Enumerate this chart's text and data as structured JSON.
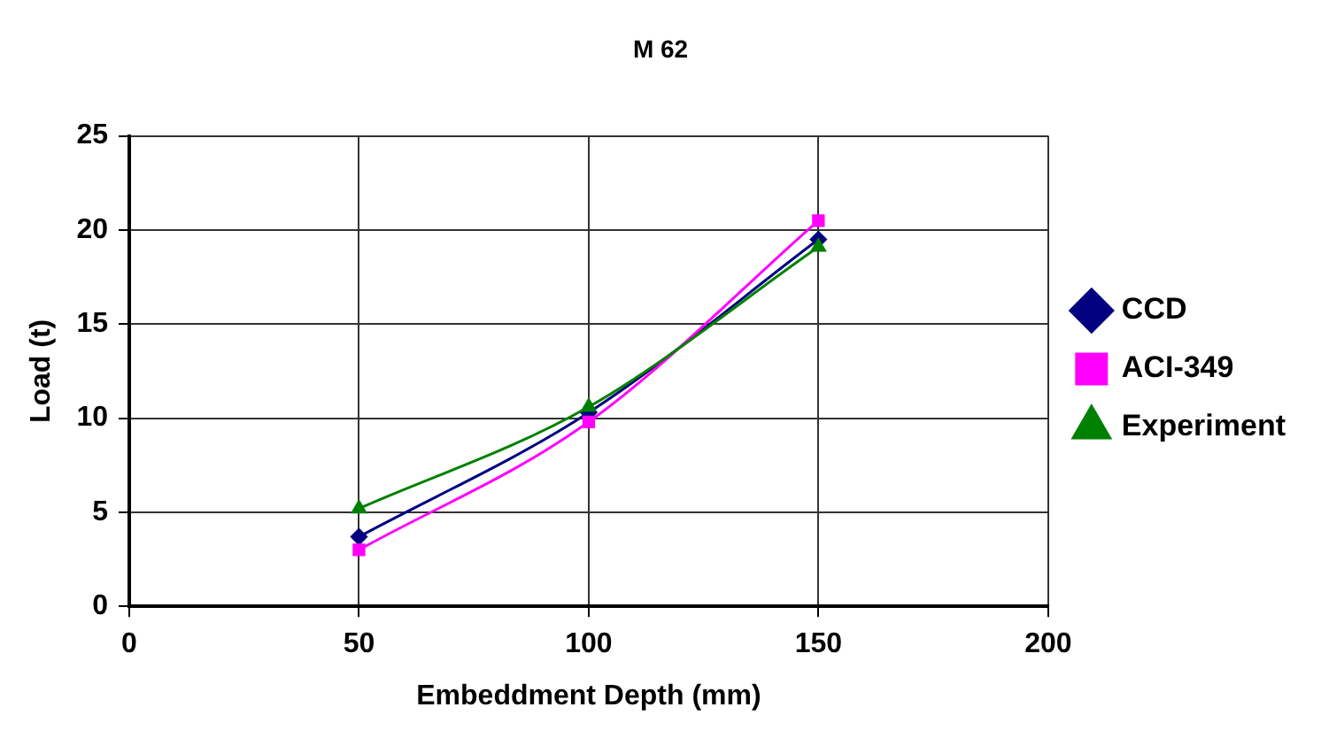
{
  "chart_data": {
    "type": "line",
    "title": "M 62",
    "xlabel": "Embeddment Depth (mm)",
    "ylabel": "Load (t)",
    "x": [
      50,
      100,
      150
    ],
    "series": [
      {
        "name": "CCD",
        "color": "#000080",
        "marker": "diamond",
        "values": [
          3.7,
          10.3,
          19.5
        ]
      },
      {
        "name": "ACI-349",
        "color": "#ff00ff",
        "marker": "square",
        "values": [
          3.0,
          9.8,
          20.5
        ]
      },
      {
        "name": "Experiment",
        "color": "#008000",
        "marker": "triangle",
        "values": [
          5.2,
          10.6,
          19.1
        ]
      }
    ],
    "xlim": [
      0,
      200
    ],
    "xticks": [
      0,
      50,
      100,
      150,
      200
    ],
    "ylim": [
      0,
      25
    ],
    "yticks": [
      0,
      5,
      10,
      15,
      20,
      25
    ],
    "grid": true,
    "legend": "right"
  }
}
